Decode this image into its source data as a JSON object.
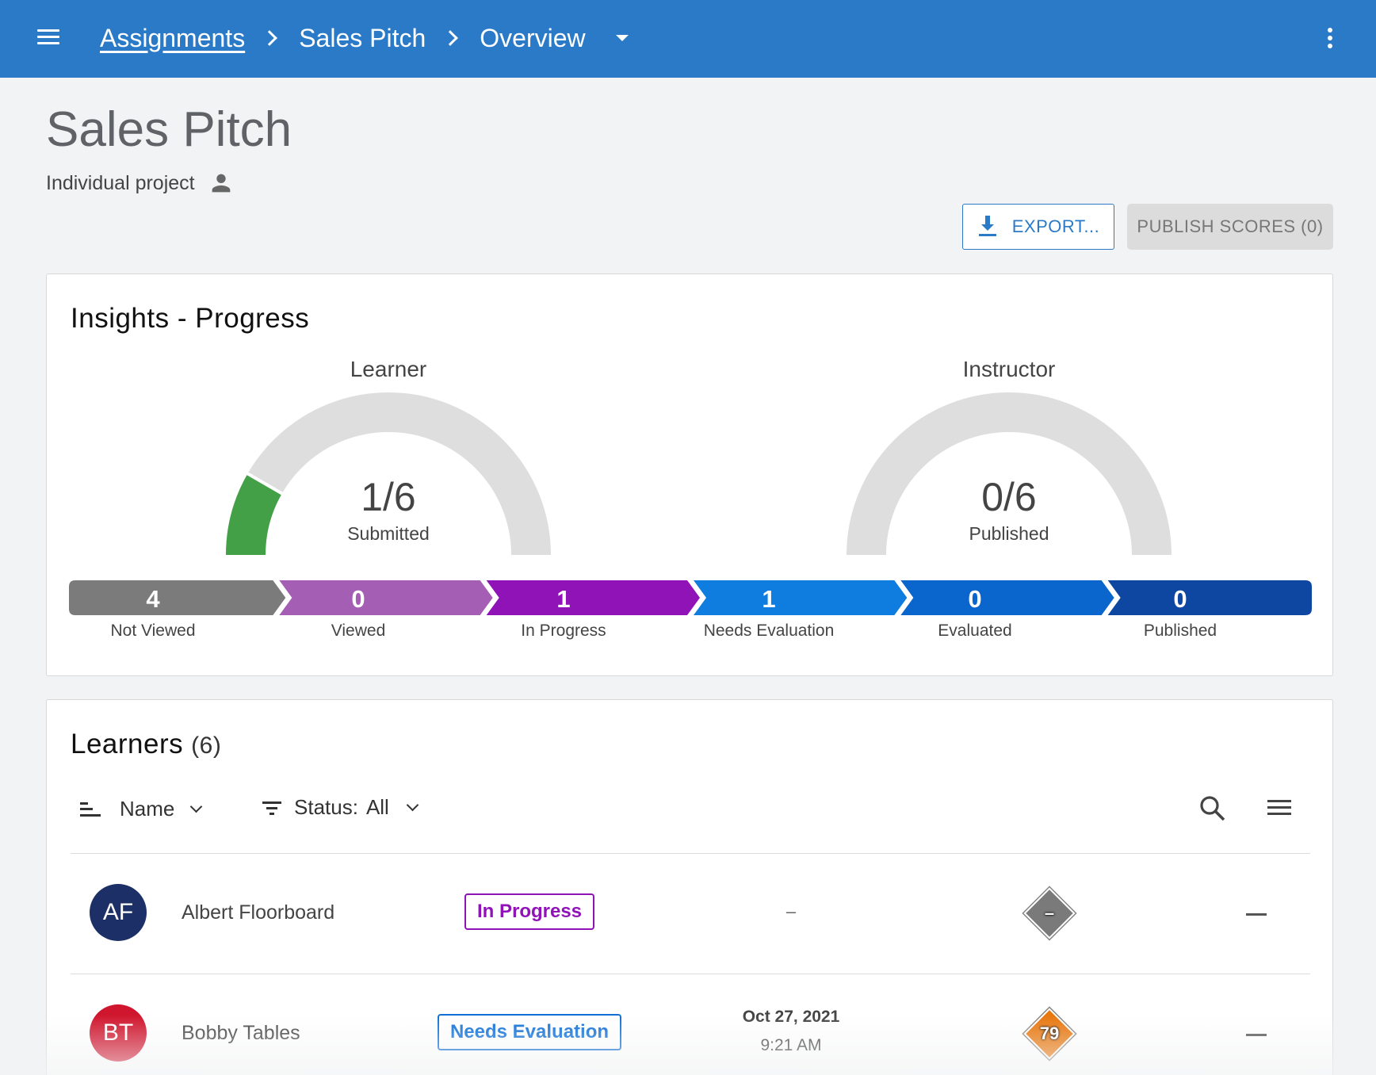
{
  "breadcrumb": {
    "root": "Assignments",
    "items": [
      "Sales Pitch",
      "Overview"
    ]
  },
  "header": {
    "title": "Sales Pitch",
    "subtitle": "Individual project"
  },
  "actions": {
    "export_label": "EXPORT...",
    "publish_label": "PUBLISH SCORES (0)"
  },
  "insights": {
    "title": "Insights - Progress",
    "learner_gauge": {
      "label": "Learner",
      "value": "1/6",
      "caption": "Submitted",
      "fraction": 0.1667
    },
    "instructor_gauge": {
      "label": "Instructor",
      "value": "0/6",
      "caption": "Published",
      "fraction": 0
    },
    "stages": [
      {
        "count": "4",
        "label": "Not Viewed",
        "color": "#7b7b7b"
      },
      {
        "count": "0",
        "label": "Viewed",
        "color": "#a45fb5"
      },
      {
        "count": "1",
        "label": "In Progress",
        "color": "#9013b8"
      },
      {
        "count": "1",
        "label": "Needs Evaluation",
        "color": "#0f7ce0"
      },
      {
        "count": "0",
        "label": "Evaluated",
        "color": "#0a66cc"
      },
      {
        "count": "0",
        "label": "Published",
        "color": "#0d47a1"
      }
    ]
  },
  "learners": {
    "title": "Learners",
    "count": "(6)",
    "sort_label": "Name",
    "filter_label": "Status:",
    "filter_value": "All",
    "rows": [
      {
        "initials": "AF",
        "name": "Albert Floorboard",
        "avatar_color": "#1c2f66",
        "status": "In Progress",
        "status_color": "#9013b8",
        "date": "–",
        "score": "–",
        "score_color": "#7a7a7a",
        "trail": "—"
      },
      {
        "initials": "BT",
        "name": "Bobby Tables",
        "avatar_color": "#d0162e",
        "status": "Needs Evaluation",
        "status_color": "#0f6fd6",
        "date": "Oct 27, 2021",
        "time": "9:21 AM",
        "score": "79",
        "score_color": "#e8770e",
        "trail": "—"
      }
    ]
  },
  "colors": {
    "appbar": "#2a7ac8",
    "gauge_fill": "#43a047",
    "gauge_track": "#dedede"
  }
}
